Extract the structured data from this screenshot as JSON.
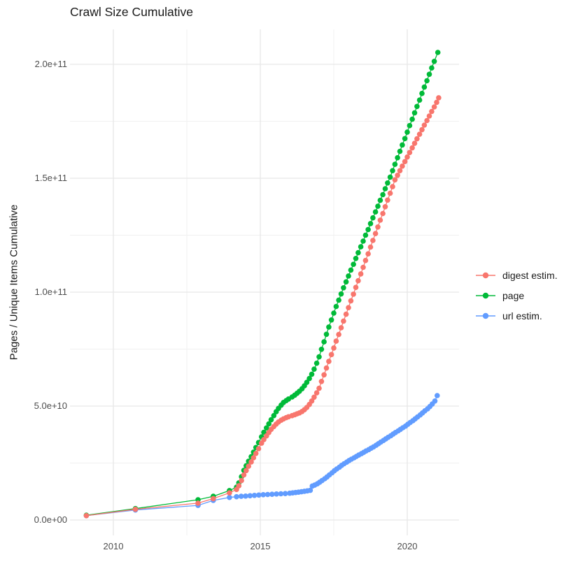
{
  "title": "Crawl Size Cumulative",
  "axes": {
    "y_label": "Pages / Unique Items Cumulative",
    "x_ticks": [
      "2010",
      "2015",
      "2020"
    ],
    "y_ticks": [
      "0.0e+00",
      "5.0e+10",
      "1.0e+11",
      "1.5e+11",
      "2.0e+11"
    ]
  },
  "legend": {
    "items": [
      {
        "label": "digest estim.",
        "color": "#F8766D"
      },
      {
        "label": "page",
        "color": "#00BA38"
      },
      {
        "label": "url estim.",
        "color": "#619CFF"
      }
    ]
  },
  "chart_data": {
    "type": "scatter",
    "title": "Crawl Size Cumulative",
    "xlabel": "",
    "ylabel": "Pages / Unique Items Cumulative",
    "x_unit": "calendar year (decimal)",
    "y_unit": "count, billions (1e9)",
    "xlim": [
      2008.5,
      2021.8
    ],
    "ylim_billions": [
      0,
      215
    ],
    "x_major_ticks": [
      2010,
      2015,
      2020
    ],
    "x_minor_gridlines": [
      2012.5,
      2017.5
    ],
    "y_major_ticks_billions": [
      0,
      50,
      100,
      150,
      200
    ],
    "y_major_tick_labels": [
      "0.0e+00",
      "5.0e+10",
      "1.0e+11",
      "1.5e+11",
      "2.0e+11"
    ],
    "y_minor_gridlines_billions": [
      25,
      75,
      125,
      175
    ],
    "grid": true,
    "legend_position": "right",
    "marker": "point-with-line",
    "draw_order": [
      2,
      1,
      0
    ],
    "series": [
      {
        "name": "digest estim.",
        "color": "#F8766D",
        "points": [
          [
            2009.08,
            1.9
          ],
          [
            2010.75,
            4.7
          ],
          [
            2012.88,
            7.4
          ],
          [
            2013.4,
            9.4
          ],
          [
            2013.95,
            11.9
          ],
          [
            2014.19,
            13.4
          ],
          [
            2014.27,
            15.0
          ],
          [
            2014.36,
            17.3
          ],
          [
            2014.44,
            19.8
          ],
          [
            2014.52,
            21.7
          ],
          [
            2014.6,
            23.6
          ],
          [
            2014.69,
            25.5
          ],
          [
            2014.77,
            27.3
          ],
          [
            2014.85,
            29.2
          ],
          [
            2014.94,
            31.3
          ],
          [
            2015.04,
            33.7
          ],
          [
            2015.12,
            35.3
          ],
          [
            2015.21,
            36.9
          ],
          [
            2015.29,
            38.4
          ],
          [
            2015.37,
            39.8
          ],
          [
            2015.46,
            41.0
          ],
          [
            2015.54,
            42.1
          ],
          [
            2015.62,
            43.0
          ],
          [
            2015.71,
            43.8
          ],
          [
            2015.79,
            44.4
          ],
          [
            2015.88,
            44.9
          ],
          [
            2015.96,
            45.3
          ],
          [
            2016.08,
            45.8
          ],
          [
            2016.17,
            46.2
          ],
          [
            2016.25,
            46.6
          ],
          [
            2016.33,
            47.0
          ],
          [
            2016.42,
            47.6
          ],
          [
            2016.5,
            48.4
          ],
          [
            2016.58,
            49.4
          ],
          [
            2016.67,
            50.7
          ],
          [
            2016.75,
            52.2
          ],
          [
            2016.83,
            53.9
          ],
          [
            2016.92,
            55.8
          ],
          [
            2017.0,
            57.8
          ],
          [
            2017.08,
            60.8
          ],
          [
            2017.17,
            63.7
          ],
          [
            2017.25,
            66.7
          ],
          [
            2017.33,
            69.6
          ],
          [
            2017.42,
            72.6
          ],
          [
            2017.5,
            75.5
          ],
          [
            2017.58,
            78.5
          ],
          [
            2017.67,
            81.4
          ],
          [
            2017.75,
            84.4
          ],
          [
            2017.83,
            87.3
          ],
          [
            2017.92,
            90.3
          ],
          [
            2018.0,
            93.2
          ],
          [
            2018.08,
            96.2
          ],
          [
            2018.17,
            99.1
          ],
          [
            2018.25,
            102.1
          ],
          [
            2018.33,
            105.0
          ],
          [
            2018.42,
            108.0
          ],
          [
            2018.5,
            110.9
          ],
          [
            2018.58,
            113.9
          ],
          [
            2018.67,
            116.8
          ],
          [
            2018.75,
            119.8
          ],
          [
            2018.83,
            122.7
          ],
          [
            2018.92,
            125.7
          ],
          [
            2019.0,
            128.6
          ],
          [
            2019.08,
            131.6
          ],
          [
            2019.17,
            134.5
          ],
          [
            2019.25,
            137.5
          ],
          [
            2019.33,
            140.4
          ],
          [
            2019.42,
            143.4
          ],
          [
            2019.5,
            146.3
          ],
          [
            2019.58,
            149.3
          ],
          [
            2019.67,
            151.3
          ],
          [
            2019.75,
            153.3
          ],
          [
            2019.83,
            155.3
          ],
          [
            2019.92,
            157.3
          ],
          [
            2020.0,
            159.3
          ],
          [
            2020.08,
            161.3
          ],
          [
            2020.17,
            163.3
          ],
          [
            2020.25,
            165.3
          ],
          [
            2020.33,
            167.3
          ],
          [
            2020.42,
            169.3
          ],
          [
            2020.5,
            171.3
          ],
          [
            2020.58,
            173.3
          ],
          [
            2020.67,
            175.3
          ],
          [
            2020.75,
            177.3
          ],
          [
            2020.83,
            179.3
          ],
          [
            2020.92,
            181.3
          ],
          [
            2021.0,
            183.3
          ],
          [
            2021.07,
            185.3
          ]
        ]
      },
      {
        "name": "page",
        "color": "#00BA38",
        "points": [
          [
            2009.08,
            2.1
          ],
          [
            2010.75,
            5.0
          ],
          [
            2012.88,
            8.9
          ],
          [
            2013.4,
            10.4
          ],
          [
            2013.95,
            12.9
          ],
          [
            2014.19,
            14.4
          ],
          [
            2014.27,
            16.3
          ],
          [
            2014.36,
            19.0
          ],
          [
            2014.44,
            21.8
          ],
          [
            2014.52,
            23.8
          ],
          [
            2014.6,
            25.8
          ],
          [
            2014.69,
            27.8
          ],
          [
            2014.77,
            29.8
          ],
          [
            2014.85,
            31.8
          ],
          [
            2014.94,
            34.0
          ],
          [
            2015.04,
            36.5
          ],
          [
            2015.12,
            38.5
          ],
          [
            2015.21,
            40.4
          ],
          [
            2015.29,
            42.2
          ],
          [
            2015.37,
            44.0
          ],
          [
            2015.46,
            45.8
          ],
          [
            2015.54,
            47.5
          ],
          [
            2015.62,
            49.0
          ],
          [
            2015.71,
            50.4
          ],
          [
            2015.79,
            51.6
          ],
          [
            2015.88,
            52.4
          ],
          [
            2015.96,
            53.1
          ],
          [
            2016.08,
            54.0
          ],
          [
            2016.17,
            54.8
          ],
          [
            2016.25,
            55.6
          ],
          [
            2016.33,
            56.5
          ],
          [
            2016.42,
            57.6
          ],
          [
            2016.5,
            58.9
          ],
          [
            2016.58,
            60.4
          ],
          [
            2016.67,
            62.1
          ],
          [
            2016.75,
            64.0
          ],
          [
            2016.83,
            66.2
          ],
          [
            2016.92,
            68.8
          ],
          [
            2017.0,
            71.6
          ],
          [
            2017.08,
            74.9
          ],
          [
            2017.17,
            78.2
          ],
          [
            2017.25,
            81.5
          ],
          [
            2017.33,
            84.7
          ],
          [
            2017.42,
            87.8
          ],
          [
            2017.5,
            90.8
          ],
          [
            2017.58,
            93.7
          ],
          [
            2017.67,
            96.5
          ],
          [
            2017.75,
            99.2
          ],
          [
            2017.83,
            101.9
          ],
          [
            2017.92,
            104.5
          ],
          [
            2018.0,
            107.1
          ],
          [
            2018.08,
            109.7
          ],
          [
            2018.17,
            112.2
          ],
          [
            2018.25,
            114.8
          ],
          [
            2018.33,
            117.3
          ],
          [
            2018.42,
            119.9
          ],
          [
            2018.5,
            122.4
          ],
          [
            2018.58,
            125.0
          ],
          [
            2018.67,
            127.5
          ],
          [
            2018.75,
            130.1
          ],
          [
            2018.83,
            132.6
          ],
          [
            2018.92,
            135.2
          ],
          [
            2019.0,
            137.7
          ],
          [
            2019.08,
            140.3
          ],
          [
            2019.17,
            142.8
          ],
          [
            2019.25,
            145.4
          ],
          [
            2019.33,
            147.9
          ],
          [
            2019.42,
            150.5
          ],
          [
            2019.5,
            153.3
          ],
          [
            2019.58,
            156.1
          ],
          [
            2019.67,
            159.0
          ],
          [
            2019.75,
            161.8
          ],
          [
            2019.83,
            164.6
          ],
          [
            2019.92,
            167.4
          ],
          [
            2020.0,
            170.2
          ],
          [
            2020.08,
            173.1
          ],
          [
            2020.17,
            175.9
          ],
          [
            2020.25,
            178.7
          ],
          [
            2020.33,
            181.5
          ],
          [
            2020.42,
            184.3
          ],
          [
            2020.5,
            187.2
          ],
          [
            2020.58,
            190.0
          ],
          [
            2020.67,
            192.8
          ],
          [
            2020.75,
            195.6
          ],
          [
            2020.83,
            198.4
          ],
          [
            2020.92,
            201.3
          ],
          [
            2021.04,
            205.2
          ]
        ]
      },
      {
        "name": "url estim.",
        "color": "#619CFF",
        "points": [
          [
            2009.08,
            1.9
          ],
          [
            2010.75,
            4.4
          ],
          [
            2012.88,
            6.4
          ],
          [
            2013.4,
            8.6
          ],
          [
            2013.95,
            9.9
          ],
          [
            2014.19,
            10.2
          ],
          [
            2014.35,
            10.4
          ],
          [
            2014.5,
            10.5
          ],
          [
            2014.65,
            10.65
          ],
          [
            2014.8,
            10.8
          ],
          [
            2014.95,
            10.95
          ],
          [
            2015.1,
            11.1
          ],
          [
            2015.25,
            11.2
          ],
          [
            2015.4,
            11.3
          ],
          [
            2015.55,
            11.4
          ],
          [
            2015.7,
            11.5
          ],
          [
            2015.85,
            11.6
          ],
          [
            2016.0,
            11.75
          ],
          [
            2016.1,
            11.9
          ],
          [
            2016.2,
            12.05
          ],
          [
            2016.3,
            12.2
          ],
          [
            2016.4,
            12.4
          ],
          [
            2016.5,
            12.6
          ],
          [
            2016.6,
            12.8
          ],
          [
            2016.7,
            13.0
          ],
          [
            2016.77,
            14.9
          ],
          [
            2016.85,
            15.3
          ],
          [
            2016.94,
            15.9
          ],
          [
            2017.02,
            16.6
          ],
          [
            2017.1,
            17.3
          ],
          [
            2017.19,
            18.1
          ],
          [
            2017.27,
            18.9
          ],
          [
            2017.35,
            19.8
          ],
          [
            2017.44,
            20.7
          ],
          [
            2017.52,
            21.6
          ],
          [
            2017.6,
            22.4
          ],
          [
            2017.69,
            23.2
          ],
          [
            2017.77,
            24.0
          ],
          [
            2017.85,
            24.7
          ],
          [
            2017.94,
            25.4
          ],
          [
            2018.02,
            26.1
          ],
          [
            2018.1,
            26.7
          ],
          [
            2018.19,
            27.3
          ],
          [
            2018.27,
            27.9
          ],
          [
            2018.35,
            28.5
          ],
          [
            2018.44,
            29.1
          ],
          [
            2018.52,
            29.7
          ],
          [
            2018.6,
            30.3
          ],
          [
            2018.69,
            30.9
          ],
          [
            2018.77,
            31.5
          ],
          [
            2018.85,
            32.1
          ],
          [
            2018.94,
            32.8
          ],
          [
            2019.02,
            33.5
          ],
          [
            2019.1,
            34.2
          ],
          [
            2019.19,
            34.9
          ],
          [
            2019.27,
            35.6
          ],
          [
            2019.35,
            36.3
          ],
          [
            2019.44,
            37.0
          ],
          [
            2019.52,
            37.7
          ],
          [
            2019.6,
            38.4
          ],
          [
            2019.69,
            39.1
          ],
          [
            2019.77,
            39.8
          ],
          [
            2019.85,
            40.5
          ],
          [
            2019.94,
            41.2
          ],
          [
            2020.02,
            42.0
          ],
          [
            2020.1,
            42.8
          ],
          [
            2020.19,
            43.6
          ],
          [
            2020.27,
            44.4
          ],
          [
            2020.35,
            45.2
          ],
          [
            2020.44,
            46.1
          ],
          [
            2020.52,
            47.0
          ],
          [
            2020.6,
            47.9
          ],
          [
            2020.69,
            48.8
          ],
          [
            2020.77,
            49.8
          ],
          [
            2020.85,
            50.9
          ],
          [
            2020.94,
            52.2
          ],
          [
            2021.02,
            54.6
          ]
        ]
      }
    ]
  },
  "style": {
    "grid_major_color": "#e6e6e6",
    "grid_minor_color": "#f0f0f0",
    "background": "#ffffff",
    "tick_text_color": "#4d4d4d"
  }
}
